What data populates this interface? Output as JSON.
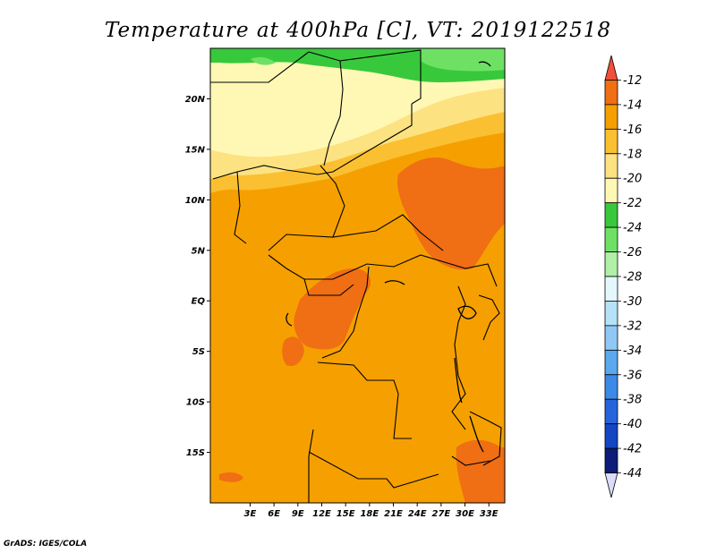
{
  "title": "Temperature at 400hPa [C], VT: 2019122518",
  "credit": "GrADS: IGES/COLA",
  "map": {
    "lon_range": [
      -2,
      35
    ],
    "lat_range": [
      -20,
      25
    ],
    "lat_ticks": [
      {
        "value": 20,
        "label": "20N"
      },
      {
        "value": 15,
        "label": "15N"
      },
      {
        "value": 10,
        "label": "10N"
      },
      {
        "value": 5,
        "label": "5N"
      },
      {
        "value": 0,
        "label": "EQ"
      },
      {
        "value": -5,
        "label": "5S"
      },
      {
        "value": -10,
        "label": "10S"
      },
      {
        "value": -15,
        "label": "15S"
      }
    ],
    "lon_ticks": [
      {
        "value": 3,
        "label": "3E"
      },
      {
        "value": 6,
        "label": "6E"
      },
      {
        "value": 9,
        "label": "9E"
      },
      {
        "value": 12,
        "label": "12E"
      },
      {
        "value": 15,
        "label": "15E"
      },
      {
        "value": 18,
        "label": "18E"
      },
      {
        "value": 21,
        "label": "21E"
      },
      {
        "value": 24,
        "label": "24E"
      },
      {
        "value": 27,
        "label": "27E"
      },
      {
        "value": 30,
        "label": "30E"
      },
      {
        "value": 33,
        "label": "33E"
      }
    ]
  },
  "colorbar": {
    "labels": [
      "-12",
      "-14",
      "-16",
      "-18",
      "-20",
      "-22",
      "-24",
      "-26",
      "-28",
      "-30",
      "-32",
      "-34",
      "-36",
      "-38",
      "-40",
      "-42",
      "-44"
    ],
    "colors": [
      "#f0503c",
      "#f06e14",
      "#f5a000",
      "#fac031",
      "#fde282",
      "#fff8b4",
      "#38c83c",
      "#6ee165",
      "#b0f0a6",
      "#e4f7fc",
      "#b6e2f9",
      "#8fc8f4",
      "#5aa8ee",
      "#3c8ae8",
      "#2464dd",
      "#1446c4",
      "#0c1c78",
      "#dcdcf8"
    ]
  }
}
